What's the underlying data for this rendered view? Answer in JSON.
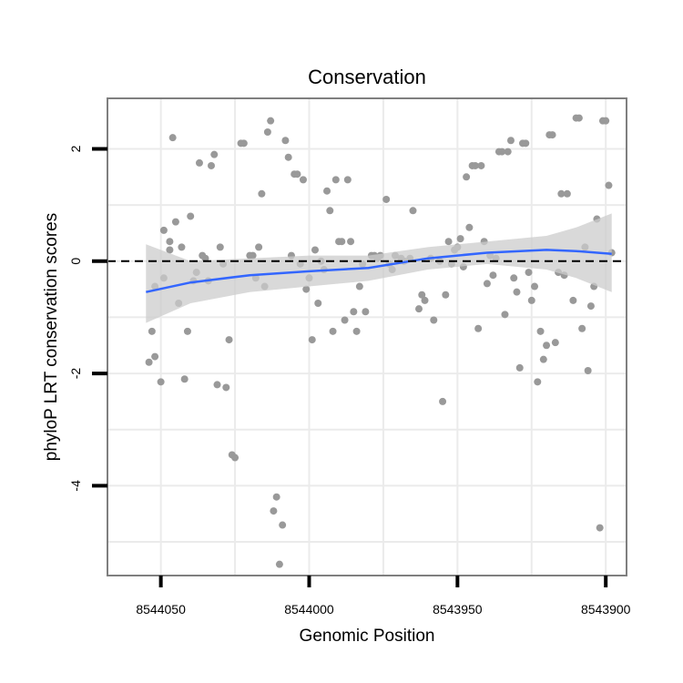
{
  "chart_data": {
    "type": "scatter",
    "title": "Conservation",
    "xlabel": "Genomic Position",
    "ylabel": "phyloP LRT conservation scores",
    "x_reversed": true,
    "xlim": [
      8544068,
      8543893
    ],
    "ylim": [
      -5.6,
      2.9
    ],
    "x_ticks": [
      8544050,
      8544000,
      8543950,
      8543900
    ],
    "x_tick_labels": [
      "8544050",
      "8544000",
      "8543950",
      "8543900"
    ],
    "y_ticks": [
      2,
      0,
      -2,
      -4
    ],
    "y_tick_labels": [
      "2",
      "0",
      "-2",
      "-4"
    ],
    "grid": true,
    "legend": "none",
    "reference_line": {
      "y": 0,
      "style": "dashed",
      "color": "#000000"
    },
    "colors": {
      "points": "#999999",
      "smooth_line": "#3366ff",
      "confidence_band": "#cccccc",
      "grid": "#ebebeb",
      "panel_border": "#7f7f7f"
    },
    "points": [
      {
        "x": 8544054,
        "y": -1.8
      },
      {
        "x": 8544053,
        "y": -1.25
      },
      {
        "x": 8544052,
        "y": -1.7
      },
      {
        "x": 8544052,
        "y": -0.45
      },
      {
        "x": 8544050,
        "y": -2.15
      },
      {
        "x": 8544049,
        "y": -0.3
      },
      {
        "x": 8544049,
        "y": 0.55
      },
      {
        "x": 8544047,
        "y": 0.2
      },
      {
        "x": 8544047,
        "y": 0.35
      },
      {
        "x": 8544046,
        "y": 2.2
      },
      {
        "x": 8544045,
        "y": 0.7
      },
      {
        "x": 8544044,
        "y": -0.75
      },
      {
        "x": 8544043,
        "y": 0.25
      },
      {
        "x": 8544042,
        "y": -2.1
      },
      {
        "x": 8544041,
        "y": -1.25
      },
      {
        "x": 8544040,
        "y": 0.8
      },
      {
        "x": 8544039,
        "y": -0.35
      },
      {
        "x": 8544038,
        "y": -0.2
      },
      {
        "x": 8544037,
        "y": 1.75
      },
      {
        "x": 8544036,
        "y": 0.1
      },
      {
        "x": 8544035,
        "y": 0.05
      },
      {
        "x": 8544034,
        "y": -0.35
      },
      {
        "x": 8544033,
        "y": 1.7
      },
      {
        "x": 8544032,
        "y": 1.9
      },
      {
        "x": 8544031,
        "y": -2.2
      },
      {
        "x": 8544030,
        "y": 0.25
      },
      {
        "x": 8544029,
        "y": -0.05
      },
      {
        "x": 8544028,
        "y": -2.25
      },
      {
        "x": 8544027,
        "y": -1.4
      },
      {
        "x": 8544026,
        "y": -3.45
      },
      {
        "x": 8544025,
        "y": -3.5
      },
      {
        "x": 8544023,
        "y": 2.1
      },
      {
        "x": 8544022,
        "y": 2.1
      },
      {
        "x": 8544020,
        "y": 0.1
      },
      {
        "x": 8544019,
        "y": 0.1
      },
      {
        "x": 8544018,
        "y": -0.3
      },
      {
        "x": 8544017,
        "y": 0.25
      },
      {
        "x": 8544016,
        "y": 1.2
      },
      {
        "x": 8544015,
        "y": -0.45
      },
      {
        "x": 8544014,
        "y": 2.3
      },
      {
        "x": 8544013,
        "y": 2.5
      },
      {
        "x": 8544012,
        "y": -4.45
      },
      {
        "x": 8544011,
        "y": -4.2
      },
      {
        "x": 8544010,
        "y": -5.4
      },
      {
        "x": 8544009,
        "y": -4.7
      },
      {
        "x": 8544008,
        "y": 2.15
      },
      {
        "x": 8544007,
        "y": 1.85
      },
      {
        "x": 8544006,
        "y": 0.1
      },
      {
        "x": 8544005,
        "y": 1.55
      },
      {
        "x": 8544004,
        "y": 1.55
      },
      {
        "x": 8544003,
        "y": -0.05
      },
      {
        "x": 8544002,
        "y": 1.45
      },
      {
        "x": 8544001,
        "y": -0.5
      },
      {
        "x": 8544000,
        "y": -0.3
      },
      {
        "x": 8543999,
        "y": -1.4
      },
      {
        "x": 8543998,
        "y": 0.2
      },
      {
        "x": 8543997,
        "y": -0.75
      },
      {
        "x": 8543996,
        "y": 0.0
      },
      {
        "x": 8543995,
        "y": -0.15
      },
      {
        "x": 8543994,
        "y": 1.25
      },
      {
        "x": 8543993,
        "y": 0.9
      },
      {
        "x": 8543992,
        "y": -1.25
      },
      {
        "x": 8543991,
        "y": 1.45
      },
      {
        "x": 8543990,
        "y": 0.35
      },
      {
        "x": 8543989,
        "y": 0.35
      },
      {
        "x": 8543988,
        "y": -1.05
      },
      {
        "x": 8543987,
        "y": 1.45
      },
      {
        "x": 8543986,
        "y": 0.35
      },
      {
        "x": 8543985,
        "y": -0.9
      },
      {
        "x": 8543984,
        "y": -1.25
      },
      {
        "x": 8543983,
        "y": -0.45
      },
      {
        "x": 8543982,
        "y": -0.05
      },
      {
        "x": 8543981,
        "y": -0.9
      },
      {
        "x": 8543979,
        "y": 0.1
      },
      {
        "x": 8543978,
        "y": 0.1
      },
      {
        "x": 8543977,
        "y": 0.05
      },
      {
        "x": 8543976,
        "y": 0.1
      },
      {
        "x": 8543974,
        "y": 1.1
      },
      {
        "x": 8543973,
        "y": -0.05
      },
      {
        "x": 8543972,
        "y": -0.15
      },
      {
        "x": 8543971,
        "y": 0.1
      },
      {
        "x": 8543969,
        "y": 0.05
      },
      {
        "x": 8543968,
        "y": 0.0
      },
      {
        "x": 8543966,
        "y": 0.05
      },
      {
        "x": 8543965,
        "y": 0.9
      },
      {
        "x": 8543963,
        "y": -0.85
      },
      {
        "x": 8543962,
        "y": -0.6
      },
      {
        "x": 8543961,
        "y": -0.7
      },
      {
        "x": 8543959,
        "y": 0.05
      },
      {
        "x": 8543958,
        "y": -1.05
      },
      {
        "x": 8543956,
        "y": 0.0
      },
      {
        "x": 8543955,
        "y": -2.5
      },
      {
        "x": 8543954,
        "y": -0.6
      },
      {
        "x": 8543953,
        "y": 0.35
      },
      {
        "x": 8543952,
        "y": -0.05
      },
      {
        "x": 8543951,
        "y": 0.2
      },
      {
        "x": 8543950,
        "y": 0.25
      },
      {
        "x": 8543949,
        "y": 0.4
      },
      {
        "x": 8543948,
        "y": -0.1
      },
      {
        "x": 8543947,
        "y": 1.5
      },
      {
        "x": 8543946,
        "y": 0.6
      },
      {
        "x": 8543945,
        "y": 1.7
      },
      {
        "x": 8543944,
        "y": 1.7
      },
      {
        "x": 8543943,
        "y": -1.2
      },
      {
        "x": 8543942,
        "y": 1.7
      },
      {
        "x": 8543941,
        "y": 0.35
      },
      {
        "x": 8543940,
        "y": -0.4
      },
      {
        "x": 8543939,
        "y": 0.1
      },
      {
        "x": 8543938,
        "y": -0.25
      },
      {
        "x": 8543937,
        "y": 0.05
      },
      {
        "x": 8543936,
        "y": 1.95
      },
      {
        "x": 8543935,
        "y": 1.95
      },
      {
        "x": 8543934,
        "y": -0.95
      },
      {
        "x": 8543933,
        "y": 1.95
      },
      {
        "x": 8543932,
        "y": 2.15
      },
      {
        "x": 8543931,
        "y": -0.3
      },
      {
        "x": 8543930,
        "y": -0.55
      },
      {
        "x": 8543929,
        "y": -1.9
      },
      {
        "x": 8543928,
        "y": 2.1
      },
      {
        "x": 8543927,
        "y": 2.1
      },
      {
        "x": 8543926,
        "y": -0.2
      },
      {
        "x": 8543925,
        "y": -0.7
      },
      {
        "x": 8543924,
        "y": -0.45
      },
      {
        "x": 8543923,
        "y": -2.15
      },
      {
        "x": 8543922,
        "y": -1.25
      },
      {
        "x": 8543921,
        "y": -1.75
      },
      {
        "x": 8543920,
        "y": -1.5
      },
      {
        "x": 8543919,
        "y": 2.25
      },
      {
        "x": 8543918,
        "y": 2.25
      },
      {
        "x": 8543917,
        "y": -1.45
      },
      {
        "x": 8543916,
        "y": -0.2
      },
      {
        "x": 8543915,
        "y": 1.2
      },
      {
        "x": 8543914,
        "y": -0.25
      },
      {
        "x": 8543913,
        "y": 1.2
      },
      {
        "x": 8543911,
        "y": -0.7
      },
      {
        "x": 8543910,
        "y": 2.55
      },
      {
        "x": 8543909,
        "y": 2.55
      },
      {
        "x": 8543908,
        "y": -1.2
      },
      {
        "x": 8543907,
        "y": 0.25
      },
      {
        "x": 8543906,
        "y": -1.95
      },
      {
        "x": 8543905,
        "y": -0.8
      },
      {
        "x": 8543904,
        "y": -0.45
      },
      {
        "x": 8543903,
        "y": 0.75
      },
      {
        "x": 8543902,
        "y": -4.75
      },
      {
        "x": 8543901,
        "y": 2.5
      },
      {
        "x": 8543900,
        "y": 2.5
      },
      {
        "x": 8543899,
        "y": 1.35
      },
      {
        "x": 8543898,
        "y": 0.15
      }
    ],
    "smooth": {
      "x": [
        8544055,
        8544040,
        8544020,
        8544000,
        8543980,
        8543960,
        8543940,
        8543920,
        8543910,
        8543898
      ],
      "y": [
        -0.55,
        -0.38,
        -0.25,
        -0.18,
        -0.12,
        0.05,
        0.15,
        0.2,
        0.18,
        0.13
      ],
      "ymin": [
        -1.1,
        -0.75,
        -0.55,
        -0.45,
        -0.35,
        -0.15,
        -0.05,
        -0.15,
        -0.3,
        -0.55
      ],
      "ymax": [
        0.3,
        0.0,
        0.05,
        0.1,
        0.1,
        0.25,
        0.35,
        0.45,
        0.6,
        0.85
      ]
    }
  }
}
